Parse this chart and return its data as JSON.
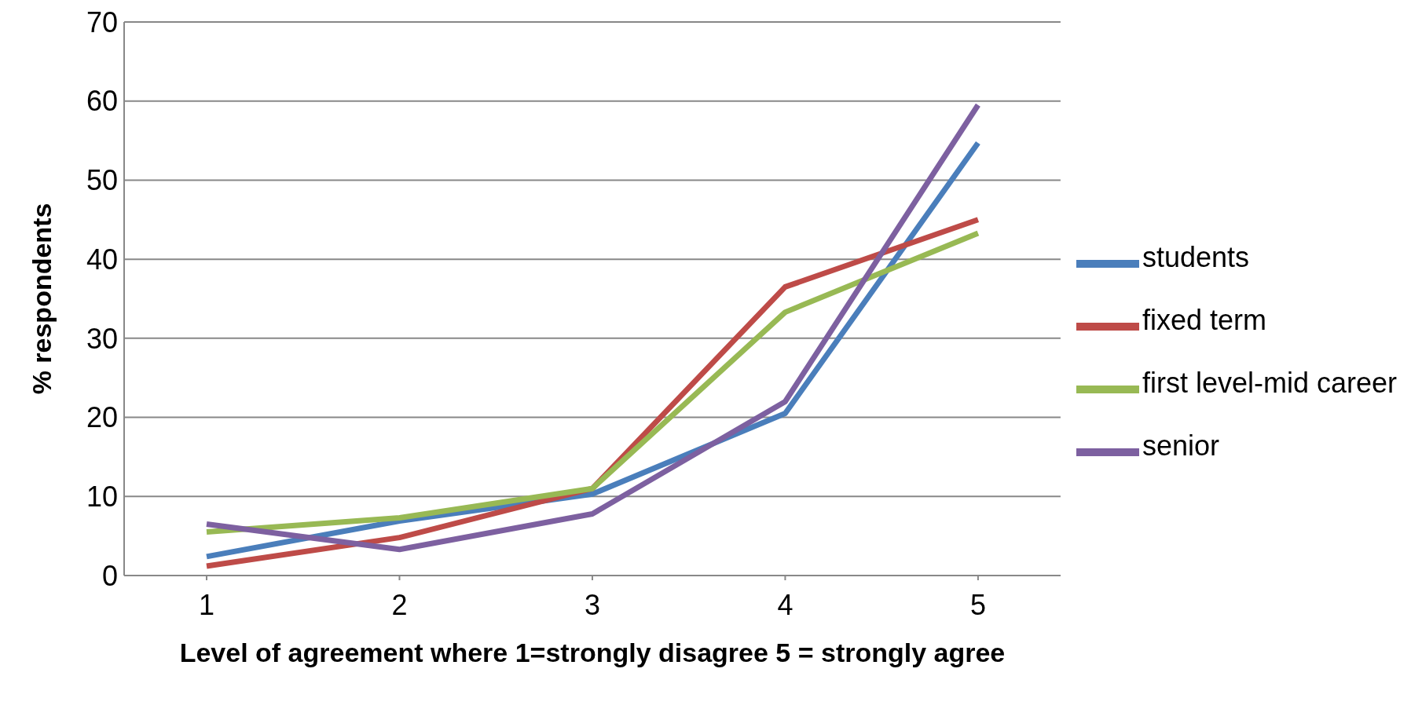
{
  "chart_data": {
    "type": "line",
    "xlabel": "Level of agreement where 1=strongly disagree 5 = strongly agree",
    "ylabel": "% respondents",
    "categories": [
      "1",
      "2",
      "3",
      "4",
      "5"
    ],
    "series": [
      {
        "name": "students",
        "color": "#4a7ebb",
        "values": [
          2.4,
          6.9,
          10.3,
          20.5,
          54.7
        ]
      },
      {
        "name": "fixed term",
        "color": "#be4b48",
        "values": [
          1.2,
          4.8,
          11,
          36.5,
          45
        ]
      },
      {
        "name": "first level-mid career",
        "color": "#98b954",
        "values": [
          5.5,
          7.3,
          11,
          33.3,
          43.3
        ]
      },
      {
        "name": "senior",
        "color": "#7d60a0",
        "values": [
          6.5,
          3.3,
          7.8,
          22,
          59.5
        ]
      }
    ],
    "ylim": [
      0,
      70
    ],
    "yticks": [
      0,
      10,
      20,
      30,
      40,
      50,
      60,
      70
    ],
    "grid": "y",
    "legend": "right",
    "marker": "none",
    "line_style": "solid"
  }
}
